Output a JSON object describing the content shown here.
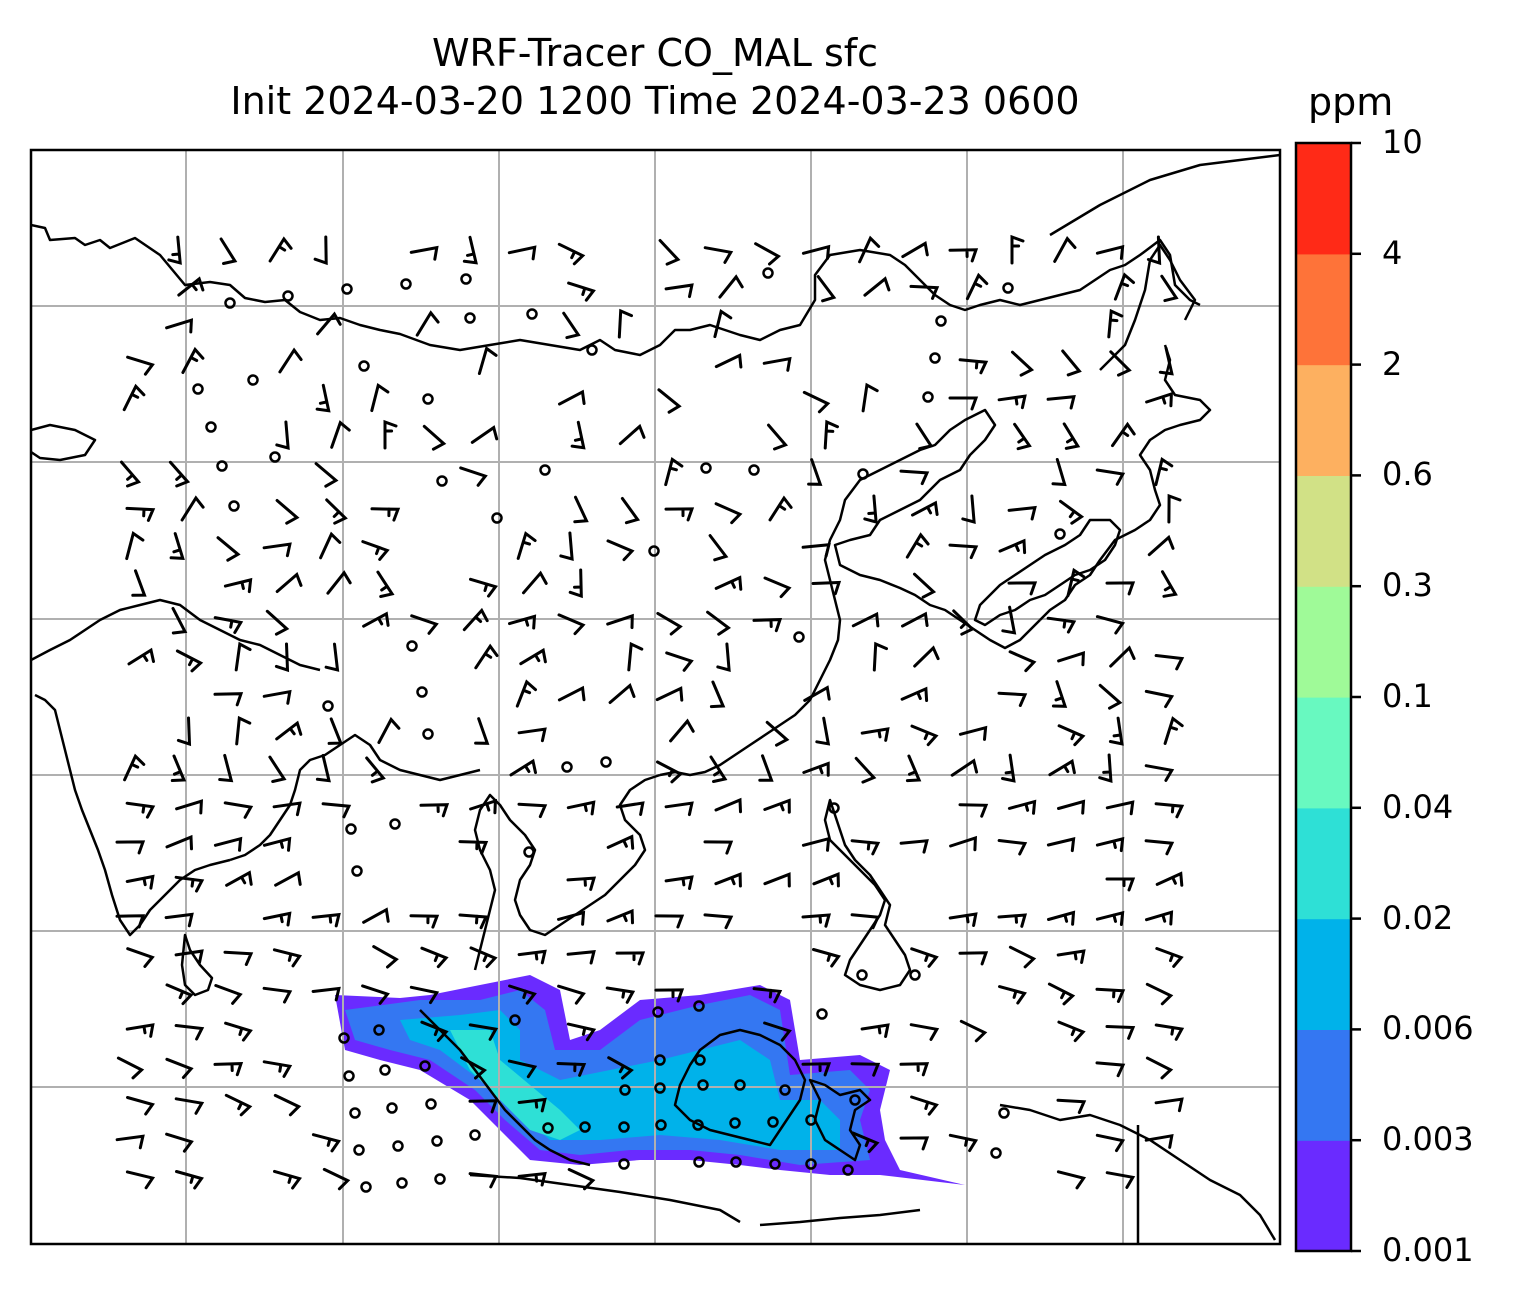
{
  "title": {
    "line1": "WRF-Tracer CO_MAL sfc",
    "line2": "Init 2024-03-20 1200 Time 2024-03-23 0600"
  },
  "colorbar": {
    "unit": "ppm",
    "levels": [
      "0.001",
      "0.003",
      "0.006",
      "0.02",
      "0.04",
      "0.1",
      "0.3",
      "0.6",
      "2",
      "4",
      "10"
    ],
    "colors": [
      "#6a2bff",
      "#3477f2",
      "#00b2ea",
      "#2ee0d6",
      "#68f9c0",
      "#9ffa98",
      "#d1e186",
      "#fdb060",
      "#fe7339",
      "#ff2a17"
    ]
  },
  "map": {
    "gridlines": true,
    "coastline_color": "#000000",
    "grid_color": "#b0b0b0",
    "symbols": [
      "wind barbs",
      "calm wind circles"
    ]
  }
}
